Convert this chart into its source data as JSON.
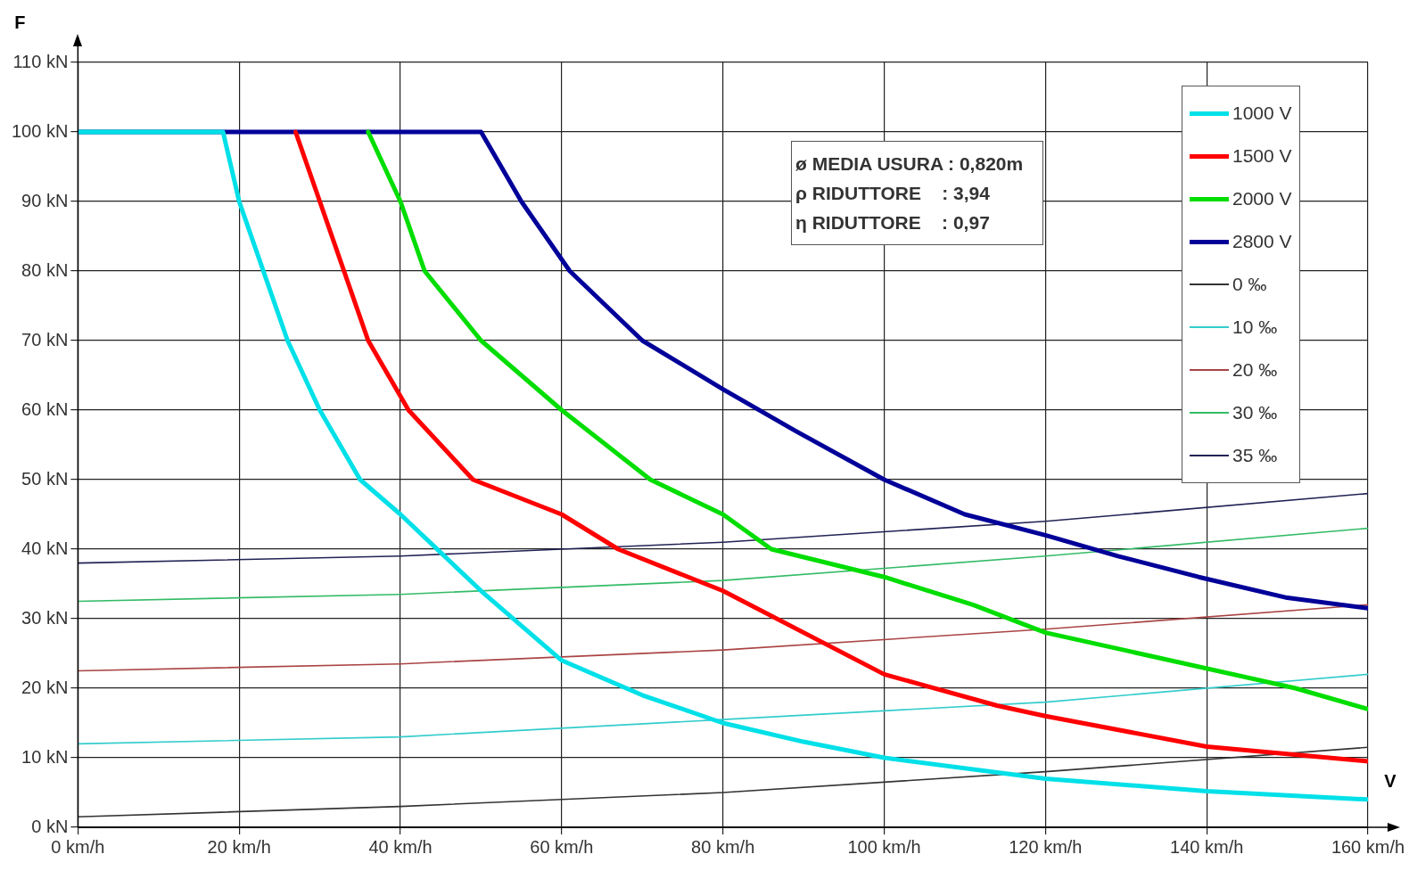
{
  "chart_data": {
    "type": "line",
    "xlabel": "V",
    "ylabel": "F",
    "xlim": [
      0,
      160
    ],
    "ylim": [
      0,
      110
    ],
    "xticks": [
      {
        "value": 0,
        "label": "0 km/h"
      },
      {
        "value": 20,
        "label": "20 km/h"
      },
      {
        "value": 40,
        "label": "40 km/h"
      },
      {
        "value": 60,
        "label": "60 km/h"
      },
      {
        "value": 80,
        "label": "80 km/h"
      },
      {
        "value": 100,
        "label": "100 km/h"
      },
      {
        "value": 120,
        "label": "120 km/h"
      },
      {
        "value": 140,
        "label": "140 km/h"
      },
      {
        "value": 160,
        "label": "160 km/h"
      }
    ],
    "yticks": [
      {
        "value": 0,
        "label": "0 kN"
      },
      {
        "value": 10,
        "label": "10 kN"
      },
      {
        "value": 20,
        "label": "20 kN"
      },
      {
        "value": 30,
        "label": "30 kN"
      },
      {
        "value": 40,
        "label": "40 kN"
      },
      {
        "value": 50,
        "label": "50 kN"
      },
      {
        "value": 60,
        "label": "60 kN"
      },
      {
        "value": 70,
        "label": "70 kN"
      },
      {
        "value": 80,
        "label": "80 kN"
      },
      {
        "value": 90,
        "label": "90 kN"
      },
      {
        "value": 100,
        "label": "100 kN"
      },
      {
        "value": 110,
        "label": "110 kN"
      }
    ],
    "grid": true,
    "legend": "top right",
    "marker": "none",
    "line_style": "solid",
    "annotations": [
      "ø MEDIA USURA : 0,820m",
      "ρ RIDUTTORE    : 3,94",
      "η RIDUTTORE    : 0,97"
    ],
    "series": [
      {
        "name": "1000 V",
        "color": "#00e0e8",
        "x": [
          0,
          18,
          20,
          26,
          30,
          35,
          40,
          45,
          50,
          60,
          70,
          80,
          90,
          100,
          120,
          140,
          160
        ],
        "values": [
          100,
          100,
          90,
          70,
          60,
          50,
          45,
          39.5,
          34,
          24,
          19,
          15,
          12.3,
          10,
          7,
          5.2,
          4
        ]
      },
      {
        "name": "1500 V",
        "color": "#ff0000",
        "x": [
          27,
          30,
          33,
          36,
          41,
          49,
          60,
          67,
          80,
          100,
          114,
          120,
          140,
          160
        ],
        "values": [
          100,
          90,
          80,
          70,
          60,
          50,
          45,
          40,
          34,
          22,
          17.5,
          16,
          11.6,
          9.5
        ]
      },
      {
        "name": "2000 V",
        "color": "#00dd00",
        "x": [
          36,
          40,
          43,
          50,
          60,
          71,
          80,
          86,
          100,
          111,
          120,
          151,
          160
        ],
        "values": [
          100,
          90,
          80,
          70,
          60,
          50,
          45,
          40,
          36,
          32,
          28,
          20,
          17
        ]
      },
      {
        "name": "2800 V",
        "color": "#000099",
        "x": [
          0,
          50,
          55,
          61,
          70,
          80,
          89,
          100,
          110,
          120,
          129,
          139,
          150,
          160
        ],
        "values": [
          100,
          100,
          90,
          80,
          70,
          63,
          57,
          50,
          45,
          42,
          39,
          36,
          33,
          31.5
        ]
      },
      {
        "name": "0 ‰",
        "color": "#333333",
        "x": [
          0,
          40,
          80,
          120,
          160
        ],
        "values": [
          1.5,
          3,
          5,
          8,
          11.5
        ]
      },
      {
        "name": "10 ‰",
        "color": "#33cccc",
        "x": [
          0,
          40,
          80,
          120,
          160
        ],
        "values": [
          12,
          13,
          15.5,
          18,
          22
        ]
      },
      {
        "name": "20 ‰",
        "color": "#aa4444",
        "x": [
          0,
          40,
          80,
          120,
          160
        ],
        "values": [
          22.5,
          23.5,
          25.5,
          28.5,
          32
        ]
      },
      {
        "name": "30 ‰",
        "color": "#33bb66",
        "x": [
          0,
          40,
          80,
          120,
          160
        ],
        "values": [
          32.5,
          33.5,
          35.5,
          39,
          43
        ]
      },
      {
        "name": "35 ‰",
        "color": "#222255",
        "x": [
          0,
          40,
          80,
          120,
          160
        ],
        "values": [
          38,
          39,
          41,
          44,
          48
        ]
      }
    ]
  }
}
